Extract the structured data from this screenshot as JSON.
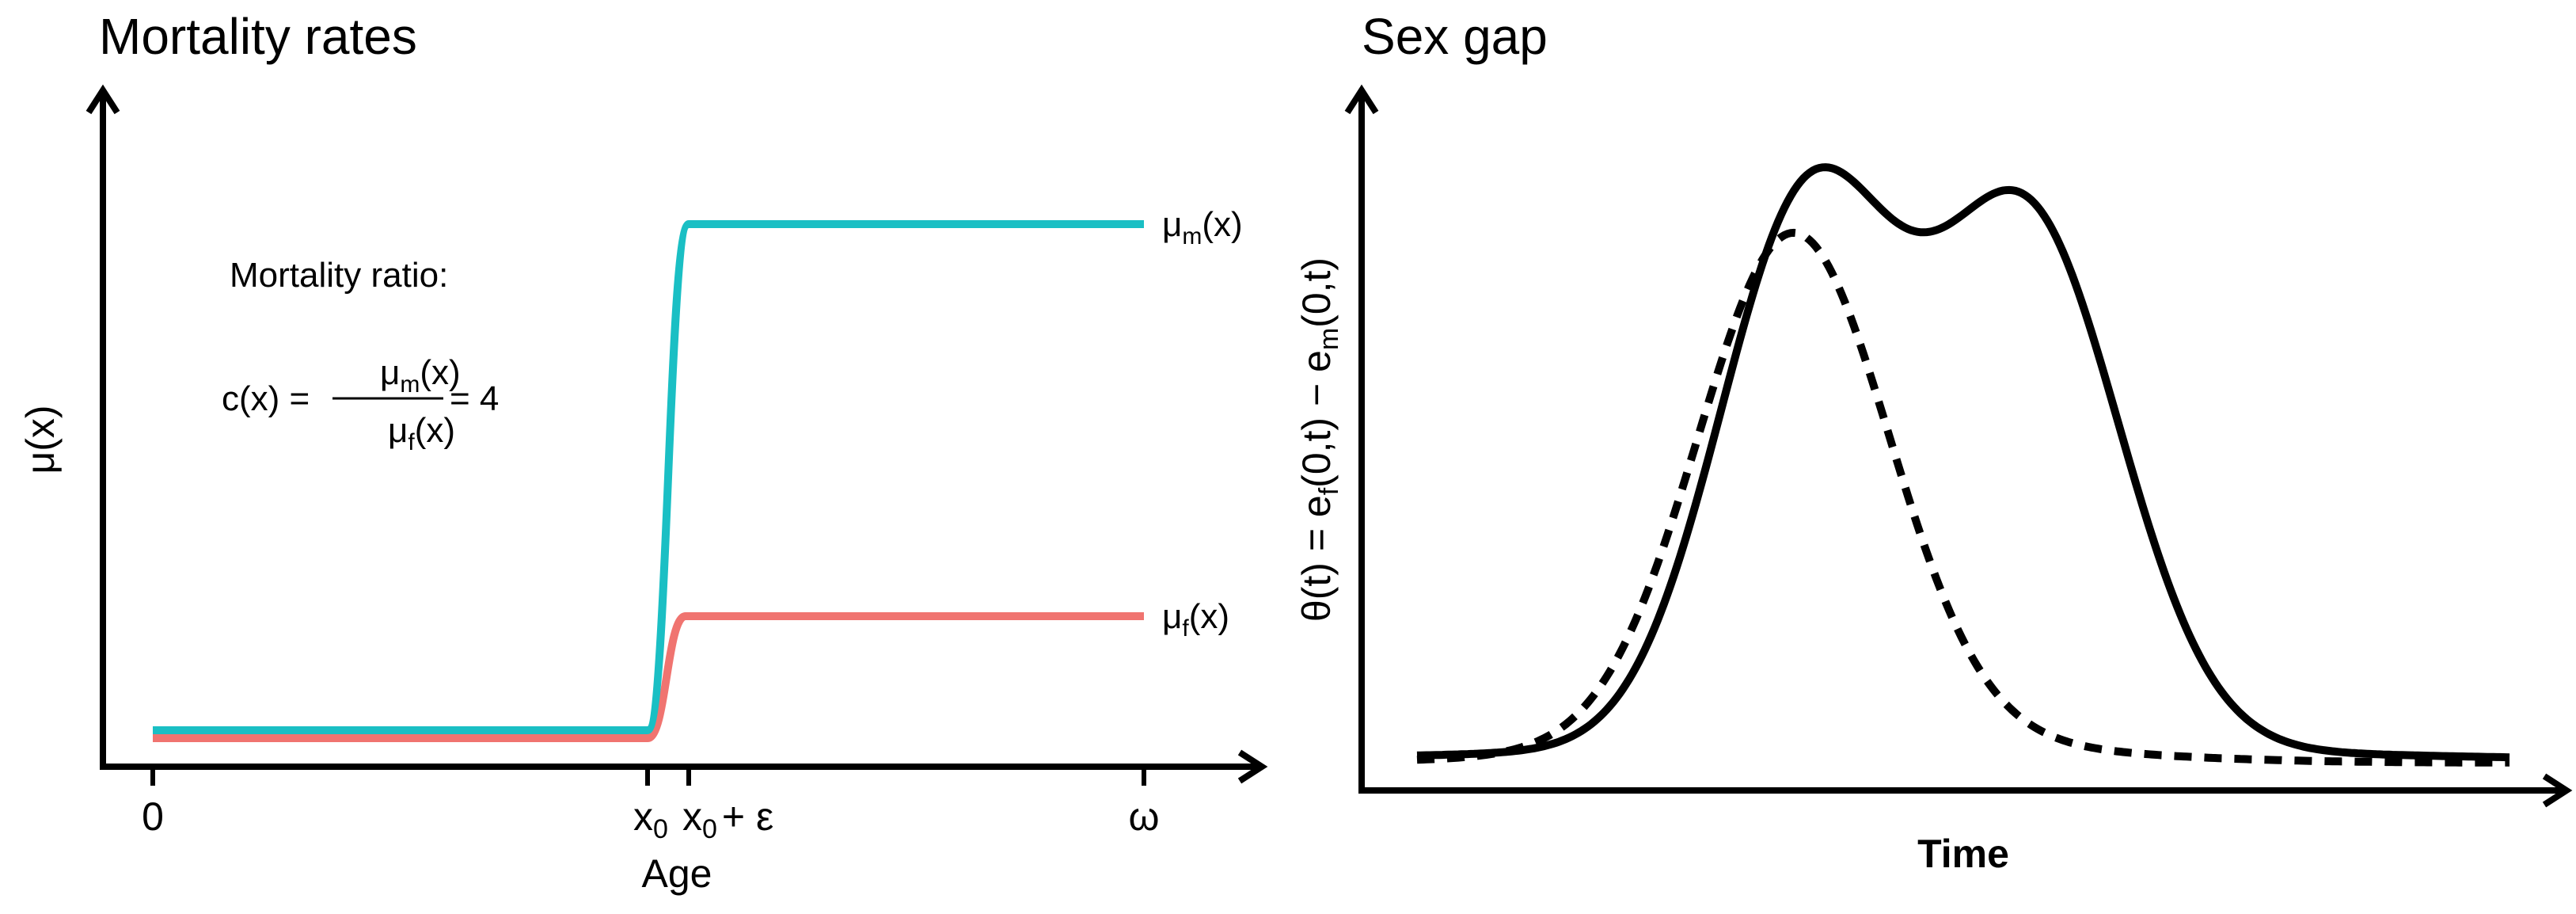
{
  "colors": {
    "male": "#1ABFC4",
    "female": "#F07470",
    "axis": "#000000"
  },
  "chart_data": [
    {
      "type": "line",
      "title": "Mortality rates",
      "xlabel": "Age",
      "ylabel": "μ(x)",
      "x_ticks": [
        "0",
        "x0",
        "x0 + ε",
        "ω"
      ],
      "x_tick_text": {
        "x0_base": "x",
        "x0_sub": "0",
        "eps_rest": "+ ε"
      },
      "series": [
        {
          "name": "μm(x)",
          "label_main": "μ",
          "label_sub": "m",
          "label_tail": "(x)",
          "x": [
            "0",
            "x0",
            "x0 + ε",
            "ω"
          ],
          "levels": [
            "low",
            "low",
            "high",
            "high"
          ],
          "color": "#1ABFC4"
        },
        {
          "name": "μf(x)",
          "label_main": "μ",
          "label_sub": "f",
          "label_tail": "(x)",
          "x": [
            "0",
            "x0",
            "x0 + ε",
            "ω"
          ],
          "levels": [
            "low",
            "low",
            "medium",
            "medium"
          ],
          "color": "#F07470"
        }
      ],
      "annotation": {
        "heading": "Mortality ratio:",
        "lhs": "c(x) =",
        "num_main": "μ",
        "num_sub": "m",
        "num_tail": "(x)",
        "den_main": "μ",
        "den_sub": "f",
        "den_tail": "(x)",
        "rhs": "= 4"
      }
    },
    {
      "type": "line",
      "title": "Sex gap",
      "xlabel": "Time",
      "ylabel": "θ(t) = ef(0,t) − em(0,t)",
      "ylabel_parts": {
        "a": "θ(t) = e",
        "sub1": "f",
        "b": "(0,t) − e",
        "sub2": "m",
        "c": "(0,t)"
      },
      "series": [
        {
          "style": "solid",
          "shape": "two peaks of similar height"
        },
        {
          "style": "dashed",
          "shape": "single peak"
        }
      ]
    }
  ]
}
